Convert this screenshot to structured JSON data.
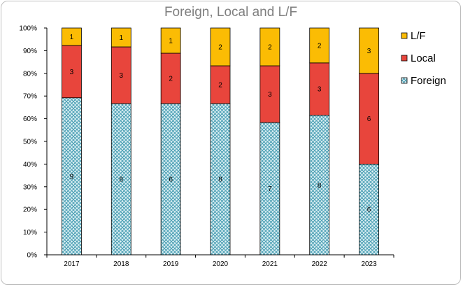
{
  "chart_data": {
    "type": "bar",
    "stacked": true,
    "normalized": true,
    "title": "Foreign, Local and L/F",
    "categories": [
      "2017",
      "2018",
      "2019",
      "2020",
      "2021",
      "2022",
      "2023"
    ],
    "series": [
      {
        "name": "Foreign",
        "values": [
          9,
          8,
          6,
          8,
          7,
          8,
          6
        ],
        "color": "#a9d8e3",
        "pattern": "crosshatch"
      },
      {
        "name": "Local",
        "values": [
          3,
          3,
          2,
          2,
          3,
          3,
          6
        ],
        "color": "#e8453c"
      },
      {
        "name": "L/F",
        "values": [
          1,
          1,
          1,
          2,
          2,
          2,
          3
        ],
        "color": "#fbbc04"
      }
    ],
    "ylim": [
      0,
      100
    ],
    "yticks": [
      "0%",
      "10%",
      "20%",
      "30%",
      "40%",
      "50%",
      "60%",
      "70%",
      "80%",
      "90%",
      "100%"
    ],
    "legend": {
      "position": "right",
      "order": [
        "L/F",
        "Local",
        "Foreign"
      ]
    },
    "grid": false
  }
}
